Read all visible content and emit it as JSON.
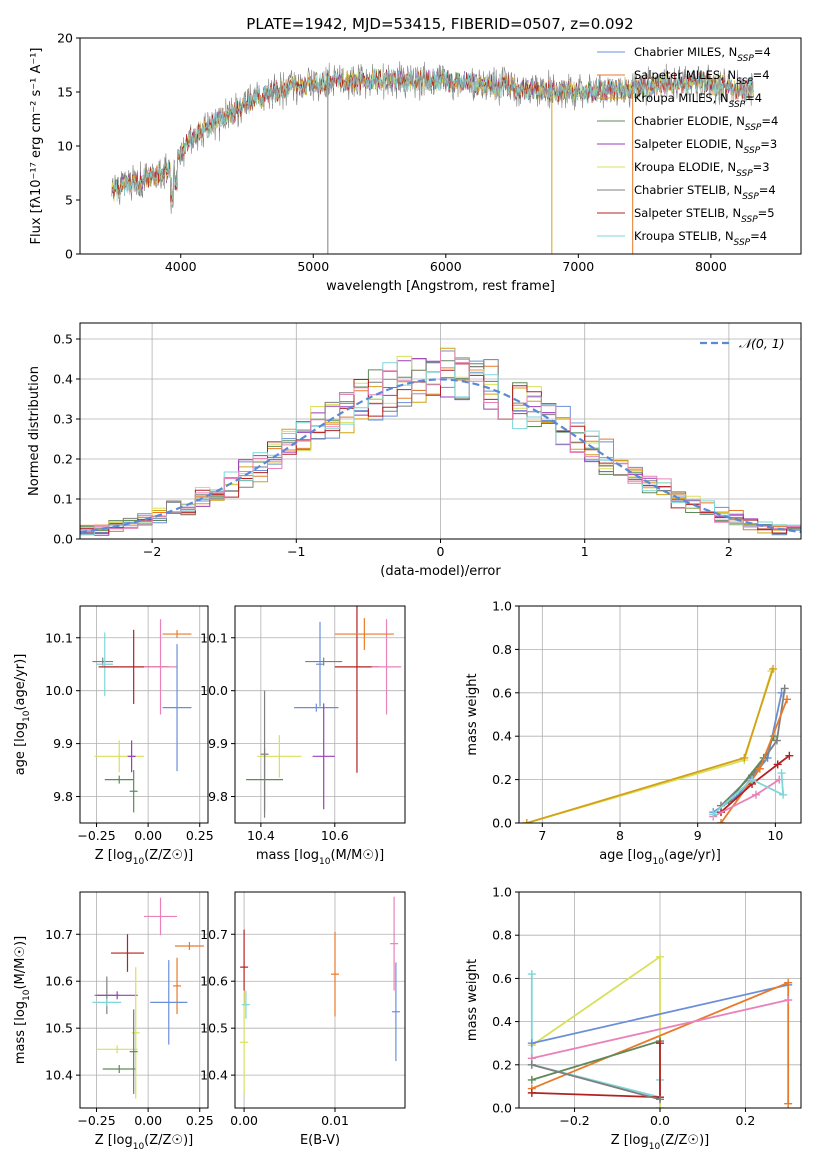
{
  "figure": {
    "title": "PLATE=1942, MJD=53415, FIBERID=0507, z=0.092"
  },
  "colors": {
    "chabrier_miles": "#6a8fd8",
    "salpeter_miles": "#e87a2a",
    "kroupa_miles": "#d4a017",
    "chabrier_elodie": "#5d8a58",
    "salpeter_elodie": "#9a3fb8",
    "kroupa_elodie": "#d8e05c",
    "chabrier_stelib": "#7f7f7f",
    "salpeter_stelib": "#b22222",
    "kroupa_stelib": "#7fd6d9",
    "pink": "#e882b8",
    "normal": "#5a8ad6",
    "grid": "#b0b0b0"
  },
  "chart_data": [
    {
      "id": "spectrum",
      "type": "line",
      "xlabel": "wavelength [Angstrom, rest frame]",
      "ylabel": "Flux [fλ10⁻¹⁷ erg cm⁻² s⁻¹ A⁻¹]",
      "xlim": [
        3240,
        8680
      ],
      "ylim": [
        0,
        20
      ],
      "xticks": [
        4000,
        5000,
        6000,
        7000,
        8000
      ],
      "yticks": [
        0,
        5,
        10,
        15,
        20
      ],
      "grid": false,
      "legend_position": "right",
      "continuum": [
        [
          3480,
          5.7
        ],
        [
          3600,
          6.3
        ],
        [
          3750,
          6.9
        ],
        [
          3900,
          7.6
        ],
        [
          3970,
          8.5
        ],
        [
          4050,
          10.5
        ],
        [
          4200,
          11.6
        ],
        [
          4400,
          13.2
        ],
        [
          4600,
          14.6
        ],
        [
          4800,
          15.4
        ],
        [
          5000,
          15.8
        ],
        [
          5200,
          16.0
        ],
        [
          5500,
          16.1
        ],
        [
          5800,
          16.1
        ],
        [
          6100,
          15.9
        ],
        [
          6400,
          15.6
        ],
        [
          6700,
          15.2
        ],
        [
          7000,
          15.0
        ],
        [
          7300,
          15.2
        ],
        [
          7600,
          15.6
        ],
        [
          7900,
          15.9
        ],
        [
          8150,
          15.4
        ],
        [
          8320,
          15.2
        ]
      ],
      "series": [
        {
          "name": "Chabrier MILES, N_SSP=4",
          "color_key": "chabrier_miles"
        },
        {
          "name": "Salpeter MILES, N_SSP=4",
          "color_key": "salpeter_miles"
        },
        {
          "name": "Kroupa MILES, N_SSP=4",
          "color_key": "kroupa_miles"
        },
        {
          "name": "Chabrier ELODIE, N_SSP=4",
          "color_key": "chabrier_elodie"
        },
        {
          "name": "Salpeter ELODIE, N_SSP=3",
          "color_key": "salpeter_elodie"
        },
        {
          "name": "Kroupa ELODIE, N_SSP=3",
          "color_key": "kroupa_elodie"
        },
        {
          "name": "Chabrier STELIB, N_SSP=4",
          "color_key": "chabrier_stelib"
        },
        {
          "name": "Salpeter STELIB, N_SSP=5",
          "color_key": "salpeter_stelib"
        },
        {
          "name": "Kroupa STELIB, N_SSP=4",
          "color_key": "kroupa_stelib"
        }
      ],
      "spikes": [
        {
          "x": 5110,
          "y": 0,
          "color_key": "chabrier_stelib"
        },
        {
          "x": 6800,
          "y": 0,
          "color_key": "kroupa_miles"
        },
        {
          "x": 7410,
          "y": 0,
          "color_key": "salpeter_miles"
        }
      ]
    },
    {
      "id": "residuals",
      "type": "bar",
      "xlabel": "(data-model)/error",
      "ylabel": "Normed distribution",
      "xlim": [
        -2.5,
        2.5
      ],
      "ylim": [
        0,
        0.54
      ],
      "xticks": [
        -2,
        -1,
        0,
        1,
        2
      ],
      "yticks": [
        0.0,
        0.1,
        0.2,
        0.3,
        0.4,
        0.5
      ],
      "grid": true,
      "legend": "N(0,1)",
      "legend_position": "top-right",
      "bin_width": 0.1,
      "normal_mu": 0,
      "normal_sigma": 1
    },
    {
      "id": "age_vs_Z",
      "type": "scatter",
      "xlabel": "Z [log10(Z/Z☉)]",
      "ylabel": "age  [log10(age/yr)]",
      "xlim": [
        -0.33,
        0.29
      ],
      "ylim": [
        9.75,
        10.16
      ],
      "xticks": [
        -0.25,
        0.0,
        0.25
      ],
      "yticks": [
        9.8,
        9.9,
        10.0,
        10.1
      ],
      "grid": true,
      "points": [
        {
          "x": -0.22,
          "y": 10.055,
          "xerr": 0.05,
          "yerr": 0.0,
          "color_key": "chabrier_stelib"
        },
        {
          "x": -0.21,
          "y": 10.05,
          "xerr": 0.04,
          "yerr": 0.06,
          "color_key": "kroupa_stelib"
        },
        {
          "x": -0.07,
          "y": 10.045,
          "xerr": 0.17,
          "yerr": 0.07,
          "color_key": "salpeter_stelib"
        },
        {
          "x": 0.06,
          "y": 10.045,
          "xerr": 0.08,
          "yerr": 0.09,
          "color_key": "pink"
        },
        {
          "x": 0.14,
          "y": 10.107,
          "xerr": 0.07,
          "yerr": 0.0,
          "color_key": "salpeter_miles"
        },
        {
          "x": 0.14,
          "y": 9.968,
          "xerr": 0.07,
          "yerr": 0.12,
          "color_key": "chabrier_miles"
        },
        {
          "x": -0.14,
          "y": 9.876,
          "xerr": 0.12,
          "yerr": 0.03,
          "color_key": "kroupa_elodie"
        },
        {
          "x": -0.08,
          "y": 9.876,
          "xerr": 0.0,
          "yerr": 0.03,
          "color_key": "salpeter_elodie"
        },
        {
          "x": -0.14,
          "y": 9.832,
          "xerr": 0.07,
          "yerr": 0.0,
          "color_key": "chabrier_elodie"
        },
        {
          "x": -0.07,
          "y": 9.81,
          "xerr": 0.0,
          "yerr": 0.04,
          "color_key": "chabrier_elodie"
        }
      ]
    },
    {
      "id": "age_vs_mass",
      "type": "scatter",
      "xlabel": "mass [log10(M/M☉)]",
      "ylabel": "",
      "xlim": [
        10.33,
        10.79
      ],
      "ylim": [
        9.75,
        10.16
      ],
      "xticks": [
        10.4,
        10.6
      ],
      "yticks": [
        9.8,
        9.9,
        10.0,
        10.1
      ],
      "grid": true,
      "points": [
        {
          "x": 10.57,
          "y": 10.055,
          "xerr": 0.05,
          "yerr": 0.0,
          "color_key": "chabrier_stelib"
        },
        {
          "x": 10.56,
          "y": 10.05,
          "xerr": 0.0,
          "yerr": 0.08,
          "color_key": "chabrier_miles"
        },
        {
          "x": 10.66,
          "y": 10.045,
          "xerr": 0.06,
          "yerr": 0.2,
          "color_key": "salpeter_stelib"
        },
        {
          "x": 10.74,
          "y": 10.045,
          "xerr": 0.04,
          "yerr": 0.09,
          "color_key": "pink"
        },
        {
          "x": 10.68,
          "y": 10.107,
          "xerr": 0.08,
          "yerr": 0.03,
          "color_key": "salpeter_miles"
        },
        {
          "x": 10.55,
          "y": 9.968,
          "xerr": 0.06,
          "yerr": 0.0,
          "color_key": "chabrier_miles"
        },
        {
          "x": 10.45,
          "y": 9.876,
          "xerr": 0.06,
          "yerr": 0.04,
          "color_key": "kroupa_elodie"
        },
        {
          "x": 10.57,
          "y": 9.876,
          "xerr": 0.03,
          "yerr": 0.1,
          "color_key": "salpeter_elodie"
        },
        {
          "x": 10.41,
          "y": 9.832,
          "xerr": 0.05,
          "yerr": 0.06,
          "color_key": "chabrier_elodie"
        },
        {
          "x": 10.41,
          "y": 9.88,
          "xerr": 0.0,
          "yerr": 0.12,
          "color_key": "chabrier_stelib"
        }
      ]
    },
    {
      "id": "weight_vs_age",
      "type": "line",
      "xlabel": "age  [log10(age/yr)]",
      "ylabel": "mass weight",
      "xlim": [
        6.7,
        10.33
      ],
      "ylim": [
        0.0,
        1.0
      ],
      "xticks": [
        7,
        8,
        9,
        10
      ],
      "yticks": [
        0.0,
        0.2,
        0.4,
        0.6,
        0.8,
        1.0
      ],
      "grid": true,
      "series": [
        {
          "color_key": "kroupa_elodie",
          "points": [
            [
              6.8,
              0.0
            ],
            [
              9.6,
              0.29
            ],
            [
              9.95,
              0.7
            ]
          ]
        },
        {
          "color_key": "kroupa_miles",
          "points": [
            [
              6.8,
              0.0
            ],
            [
              9.6,
              0.3
            ],
            [
              9.97,
              0.71
            ]
          ]
        },
        {
          "color_key": "chabrier_miles",
          "points": [
            [
              9.2,
              0.05
            ],
            [
              9.5,
              0.12
            ],
            [
              9.9,
              0.3
            ],
            [
              10.08,
              0.6
            ]
          ]
        },
        {
          "color_key": "chabrier_stelib",
          "points": [
            [
              9.3,
              0.08
            ],
            [
              9.7,
              0.22
            ],
            [
              10.02,
              0.38
            ],
            [
              10.12,
              0.62
            ]
          ]
        },
        {
          "color_key": "chabrier_elodie",
          "points": [
            [
              9.4,
              0.1
            ],
            [
              9.85,
              0.3
            ],
            [
              9.98,
              0.4
            ]
          ]
        },
        {
          "color_key": "salpeter_miles",
          "points": [
            [
              9.3,
              0.0
            ],
            [
              9.8,
              0.25
            ],
            [
              10.15,
              0.57
            ]
          ]
        },
        {
          "color_key": "salpeter_stelib",
          "points": [
            [
              9.3,
              0.05
            ],
            [
              9.7,
              0.18
            ],
            [
              10.03,
              0.27
            ],
            [
              10.18,
              0.31
            ]
          ]
        },
        {
          "color_key": "pink",
          "points": [
            [
              9.2,
              0.03
            ],
            [
              9.75,
              0.13
            ],
            [
              10.05,
              0.2
            ]
          ]
        },
        {
          "color_key": "kroupa_stelib",
          "points": [
            [
              9.2,
              0.04
            ],
            [
              9.7,
              0.2
            ],
            [
              10.1,
              0.13
            ],
            [
              10.08,
              0.23
            ]
          ]
        }
      ]
    },
    {
      "id": "mass_vs_Z",
      "type": "scatter",
      "xlabel": "Z [log10(Z/Z☉)]",
      "ylabel": "mass [log10(M/M☉)]",
      "xlim": [
        -0.33,
        0.29
      ],
      "ylim": [
        10.33,
        10.79
      ],
      "xticks": [
        -0.25,
        0.0,
        0.25
      ],
      "yticks": [
        10.4,
        10.5,
        10.6,
        10.7
      ],
      "grid": true,
      "points": [
        {
          "x": 0.06,
          "y": 10.738,
          "xerr": 0.08,
          "yerr": 0.04,
          "color_key": "pink"
        },
        {
          "x": 0.2,
          "y": 10.675,
          "xerr": 0.07,
          "yerr": 0.0,
          "color_key": "salpeter_miles"
        },
        {
          "x": -0.1,
          "y": 10.66,
          "xerr": 0.08,
          "yerr": 0.04,
          "color_key": "salpeter_stelib"
        },
        {
          "x": 0.14,
          "y": 10.59,
          "xerr": 0.0,
          "yerr": 0.06,
          "color_key": "salpeter_miles"
        },
        {
          "x": -0.2,
          "y": 10.57,
          "xerr": 0.06,
          "yerr": 0.04,
          "color_key": "chabrier_stelib"
        },
        {
          "x": -0.15,
          "y": 10.57,
          "xerr": 0.1,
          "yerr": 0.0,
          "color_key": "salpeter_elodie"
        },
        {
          "x": -0.2,
          "y": 10.555,
          "xerr": 0.07,
          "yerr": 0.0,
          "color_key": "kroupa_stelib"
        },
        {
          "x": 0.1,
          "y": 10.555,
          "xerr": 0.09,
          "yerr": 0.09,
          "color_key": "chabrier_miles"
        },
        {
          "x": -0.15,
          "y": 10.455,
          "xerr": 0.1,
          "yerr": 0.0,
          "color_key": "kroupa_elodie"
        },
        {
          "x": -0.14,
          "y": 10.413,
          "xerr": 0.08,
          "yerr": 0.0,
          "color_key": "chabrier_elodie"
        },
        {
          "x": -0.06,
          "y": 10.49,
          "xerr": 0.0,
          "yerr": 0.14,
          "color_key": "kroupa_elodie"
        },
        {
          "x": -0.07,
          "y": 10.45,
          "xerr": 0.0,
          "yerr": 0.09,
          "color_key": "chabrier_elodie"
        }
      ]
    },
    {
      "id": "mass_vs_ebv",
      "type": "scatter",
      "xlabel": "E(B-V)",
      "ylabel": "",
      "xlim": [
        -0.001,
        0.0177
      ],
      "ylim": [
        10.33,
        10.79
      ],
      "xticks": [
        0.0,
        0.01
      ],
      "yticks": [
        10.4,
        10.5,
        10.6,
        10.7
      ],
      "grid": true,
      "points": [
        {
          "x": 0.0,
          "y": 10.63,
          "xerr": 0.0,
          "yerr": 0.08,
          "color_key": "salpeter_stelib"
        },
        {
          "x": 0.0,
          "y": 10.47,
          "xerr": 0.0,
          "yerr": 0.11,
          "color_key": "kroupa_elodie"
        },
        {
          "x": 0.0002,
          "y": 10.55,
          "xerr": 0.0,
          "yerr": 0.03,
          "color_key": "kroupa_stelib"
        },
        {
          "x": 0.01,
          "y": 10.615,
          "xerr": 0.0,
          "yerr": 0.09,
          "color_key": "salpeter_miles"
        },
        {
          "x": 0.0165,
          "y": 10.68,
          "xerr": 0.0,
          "yerr": 0.1,
          "color_key": "pink"
        },
        {
          "x": 0.0167,
          "y": 10.535,
          "xerr": 0.0,
          "yerr": 0.105,
          "color_key": "chabrier_miles"
        }
      ]
    },
    {
      "id": "weight_vs_Z",
      "type": "line",
      "xlabel": "Z [log10(Z/Z☉)]",
      "ylabel": "mass weight",
      "xlim": [
        -0.33,
        0.33
      ],
      "ylim": [
        0.0,
        1.0
      ],
      "xticks": [
        -0.2,
        0.0,
        0.2
      ],
      "yticks": [
        0.0,
        0.2,
        0.4,
        0.6,
        0.8,
        1.0
      ],
      "grid": true,
      "series": [
        {
          "color_key": "kroupa_elodie",
          "points": [
            [
              -0.3,
              0.29
            ],
            [
              0.0,
              0.7
            ],
            [
              0.0,
              0.0
            ]
          ]
        },
        {
          "color_key": "kroupa_stelib",
          "points": [
            [
              -0.3,
              0.62
            ],
            [
              -0.3,
              0.2
            ],
            [
              0.0,
              0.05
            ],
            [
              0.0,
              0.13
            ]
          ]
        },
        {
          "color_key": "chabrier_miles",
          "points": [
            [
              -0.3,
              0.3
            ],
            [
              0.3,
              0.57
            ]
          ]
        },
        {
          "color_key": "salpeter_miles",
          "points": [
            [
              -0.3,
              0.09
            ],
            [
              0.3,
              0.58
            ],
            [
              0.3,
              0.02
            ]
          ]
        },
        {
          "color_key": "pink",
          "points": [
            [
              -0.3,
              0.23
            ],
            [
              0.3,
              0.5
            ]
          ]
        },
        {
          "color_key": "chabrier_elodie",
          "points": [
            [
              -0.3,
              0.13
            ],
            [
              0.0,
              0.31
            ]
          ]
        },
        {
          "color_key": "salpeter_stelib",
          "points": [
            [
              -0.3,
              0.07
            ],
            [
              0.0,
              0.05
            ],
            [
              0.0,
              0.3
            ]
          ]
        },
        {
          "color_key": "chabrier_stelib",
          "points": [
            [
              -0.3,
              0.2
            ],
            [
              0.0,
              0.04
            ]
          ]
        }
      ]
    }
  ]
}
